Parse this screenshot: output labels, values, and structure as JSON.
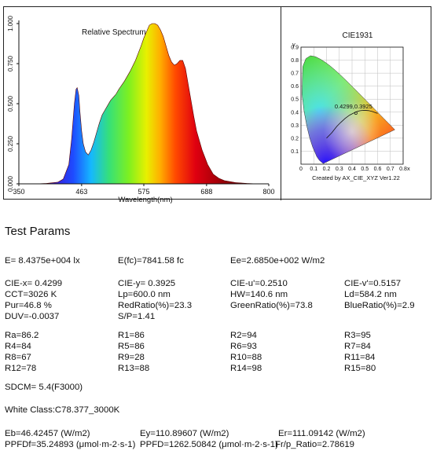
{
  "colors": {
    "axis": "#111111",
    "frame": "#222222",
    "curve": "#111111",
    "marker": "#111111"
  },
  "chart_data": [
    {
      "type": "area",
      "title": "Relative Spectrum",
      "xlabel": "Wavelength(nm)",
      "ylabel": "",
      "xlim": [
        350,
        800
      ],
      "ylim": [
        0,
        1
      ],
      "xticks": [
        "350",
        "463",
        "575",
        "688",
        "800"
      ],
      "xtick_values": [
        350,
        463,
        575,
        688,
        800
      ],
      "yticks": [
        "0.000",
        "0.250",
        "0.500",
        "0.750",
        "1.000"
      ],
      "ytick_values": [
        0,
        0.25,
        0.5,
        0.75,
        1.0
      ],
      "grid": false,
      "series": [
        {
          "x": [
            380,
            400,
            420,
            430,
            440,
            445,
            450,
            453,
            455,
            458,
            460,
            463,
            466,
            470,
            475,
            480,
            485,
            490,
            495,
            500,
            505,
            510,
            515,
            520,
            525,
            530,
            540,
            550,
            560,
            570,
            575,
            580,
            585,
            590,
            595,
            600,
            605,
            610,
            615,
            620,
            625,
            630,
            635,
            640,
            645,
            650,
            655,
            660,
            665,
            670,
            680,
            690,
            700,
            710,
            720,
            740,
            760,
            780
          ],
          "values": [
            0.0,
            0.003,
            0.01,
            0.03,
            0.12,
            0.28,
            0.5,
            0.59,
            0.6,
            0.55,
            0.45,
            0.33,
            0.25,
            0.2,
            0.18,
            0.21,
            0.26,
            0.32,
            0.38,
            0.43,
            0.46,
            0.49,
            0.52,
            0.54,
            0.56,
            0.59,
            0.64,
            0.7,
            0.77,
            0.86,
            0.91,
            0.95,
            0.99,
            1.0,
            1.0,
            0.99,
            0.96,
            0.92,
            0.86,
            0.8,
            0.76,
            0.74,
            0.75,
            0.77,
            0.77,
            0.72,
            0.62,
            0.52,
            0.42,
            0.33,
            0.21,
            0.12,
            0.06,
            0.035,
            0.02,
            0.008,
            0.003,
            0.0
          ]
        }
      ]
    },
    {
      "type": "scatter",
      "title": "CIE1931",
      "xlabel": "x",
      "ylabel": "y",
      "xlim": [
        0,
        0.8
      ],
      "ylim": [
        0,
        0.9
      ],
      "xticks": [
        "0",
        "0.1",
        "0.2",
        "0.3",
        "0.4",
        "0.5",
        "0.6",
        "0.7",
        "0.8"
      ],
      "xtick_values": [
        0,
        0.1,
        0.2,
        0.3,
        0.4,
        0.5,
        0.6,
        0.7,
        0.8
      ],
      "yticks": [
        "0.1",
        "0.2",
        "0.3",
        "0.4",
        "0.5",
        "0.6",
        "0.7",
        "0.8",
        "0.9"
      ],
      "ytick_values": [
        0.1,
        0.2,
        0.3,
        0.4,
        0.5,
        0.6,
        0.7,
        0.8,
        0.9
      ],
      "grid": true,
      "point": {
        "x": 0.4299,
        "y": 0.3925,
        "label": "0.4299,0.3925"
      },
      "locus": [
        [
          0.1741,
          0.005
        ],
        [
          0.144,
          0.0297
        ],
        [
          0.1241,
          0.0578
        ],
        [
          0.0913,
          0.1327
        ],
        [
          0.0687,
          0.2007
        ],
        [
          0.0454,
          0.295
        ],
        [
          0.0235,
          0.4127
        ],
        [
          0.0082,
          0.5384
        ],
        [
          0.0139,
          0.7502
        ],
        [
          0.0389,
          0.812
        ],
        [
          0.0743,
          0.8338
        ],
        [
          0.1142,
          0.8262
        ],
        [
          0.1547,
          0.8059
        ],
        [
          0.1929,
          0.7816
        ],
        [
          0.2296,
          0.7543
        ],
        [
          0.2658,
          0.7243
        ],
        [
          0.3016,
          0.6923
        ],
        [
          0.3373,
          0.6589
        ],
        [
          0.3731,
          0.6245
        ],
        [
          0.4087,
          0.5896
        ],
        [
          0.4441,
          0.5547
        ],
        [
          0.4788,
          0.5202
        ],
        [
          0.5125,
          0.4866
        ],
        [
          0.5448,
          0.4544
        ],
        [
          0.5752,
          0.4242
        ],
        [
          0.6029,
          0.3965
        ],
        [
          0.627,
          0.3725
        ],
        [
          0.6482,
          0.3514
        ],
        [
          0.6658,
          0.334
        ],
        [
          0.6801,
          0.3197
        ],
        [
          0.6915,
          0.3083
        ],
        [
          0.7347,
          0.2653
        ]
      ],
      "planckian": [
        [
          0.2,
          0.2
        ],
        [
          0.24,
          0.24
        ],
        [
          0.28,
          0.29
        ],
        [
          0.31,
          0.32
        ],
        [
          0.3451,
          0.3516
        ],
        [
          0.38,
          0.377
        ],
        [
          0.4099,
          0.3917
        ],
        [
          0.4369,
          0.4041
        ],
        [
          0.4599,
          0.4106
        ],
        [
          0.4897,
          0.4147
        ],
        [
          0.5,
          0.414
        ],
        [
          0.53,
          0.412
        ],
        [
          0.56,
          0.405
        ],
        [
          0.6,
          0.39
        ]
      ],
      "caption": "Created by AX_CIE_XYZ Ver1.22"
    }
  ],
  "params": {
    "title": "Test Params",
    "E": "E=  8.4375e+004 lx",
    "Efc": "E(fc)=7841.58 fc",
    "Ee": "Ee=2.6850e+002 W/m2",
    "CIEx": "CIE-x= 0.4299",
    "CIEy": "CIE-y= 0.3925",
    "CIEu": "CIE-u'=0.2510",
    "CIEv": "CIE-v'=0.5157",
    "CCT": "CCT=3026 K",
    "Lp": "Lp=600.0 nm",
    "HW": "HW=140.6 nm",
    "Ld": "Ld=584.2 nm",
    "Pur": "Pur=46.8 %",
    "RedRatio": "RedRatio(%)=23.3",
    "GreenRatio": "GreenRatio(%)=73.8",
    "BlueRatio": "BlueRatio(%)=2.9",
    "DUV": "DUV=-0.0037",
    "SP": "S/P=1.41",
    "Ra": "Ra=86.2",
    "R1": "R1=86",
    "R2": "R2=94",
    "R3": "R3=95",
    "R4": "R4=84",
    "R5": "R5=86",
    "R6": "R6=93",
    "R7": "R7=84",
    "R8": "R8=67",
    "R9": "R9=28",
    "R10": "R10=88",
    "R11": "R11=84",
    "R12": "R12=78",
    "R13": "R13=88",
    "R14": "R14=98",
    "R15": "R15=80",
    "SDCM": "SDCM= 5.4(F3000)",
    "WhiteClass": "White Class:C78.377_3000K",
    "Eb": "Eb=46.42457 (W/m2)",
    "Ey": "Ey=110.89607 (W/m2)",
    "Er": "Er=111.09142 (W/m2)",
    "PPFDf": "PPFDf=35.24893 (μmol·m-2·s-1)",
    "PPFD": "PPFD=1262.50842 (μmol·m-2·s-1)",
    "FrRatio": "Fr/p_Ratio=2.78619"
  }
}
